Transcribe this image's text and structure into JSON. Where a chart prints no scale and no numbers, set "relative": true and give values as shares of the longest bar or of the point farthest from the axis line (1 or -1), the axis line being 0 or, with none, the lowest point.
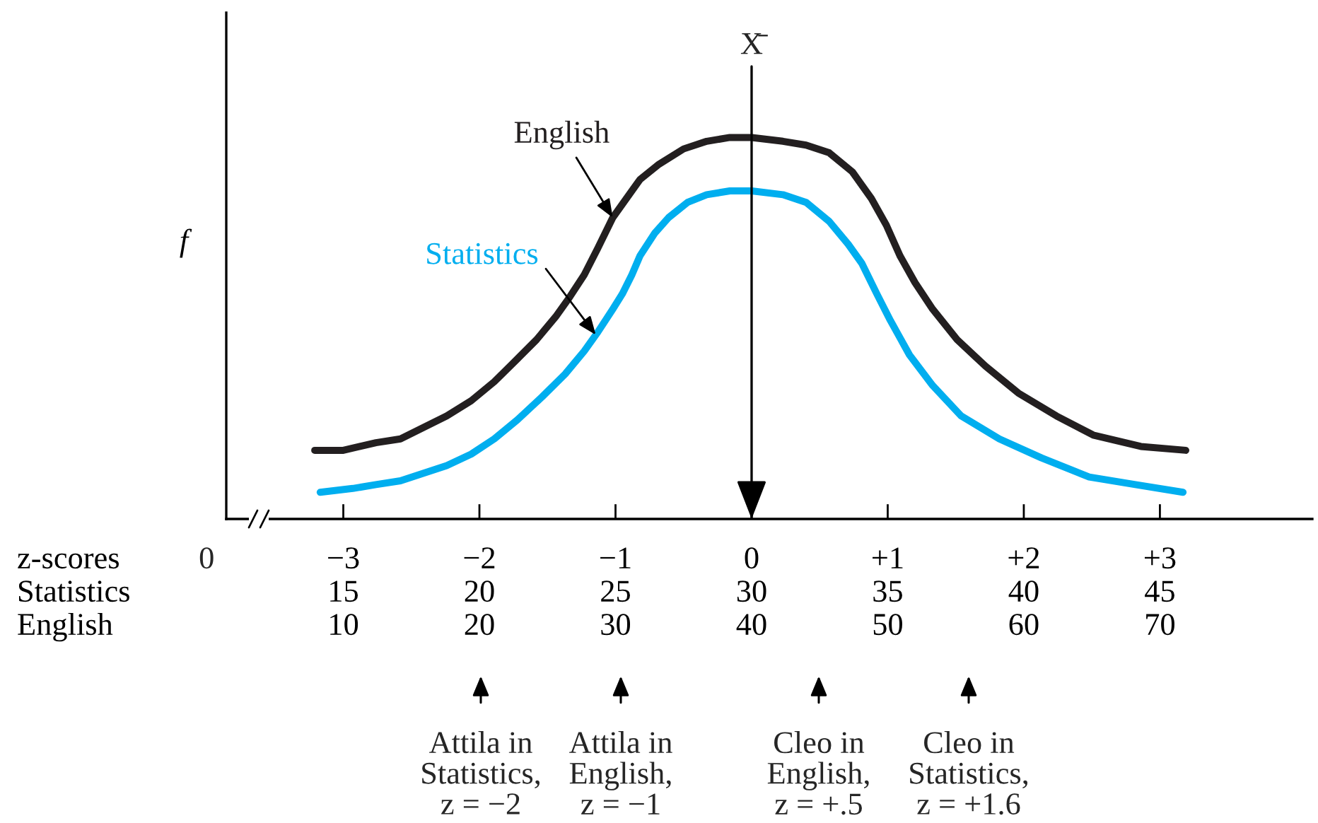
{
  "chart_data": {
    "type": "line",
    "relative": true,
    "xlabel": "z-scores",
    "x2label": "Statistics",
    "ylabel": "f",
    "xlim": [
      -3.86,
      4.12
    ],
    "xticks": [
      {
        "value": -3,
        "label": "−3"
      },
      {
        "value": -2,
        "label": "−2"
      },
      {
        "value": -1,
        "label": "−1"
      },
      0,
      {
        "value": 1,
        "label": "+1"
      },
      {
        "value": 2,
        "label": "+2"
      },
      {
        "value": 3,
        "label": "+3"
      }
    ],
    "x2lim": [
      10.7,
      50.6
    ],
    "x2ticks": [
      15,
      20,
      25,
      30,
      35,
      40,
      45
    ],
    "series": [
      {
        "name": "English",
        "color": "#231f20",
        "x": [
          -3.21,
          -3.0,
          -2.76,
          -2.58,
          -2.41,
          -2.24,
          -2.06,
          -1.89,
          -1.72,
          -1.58,
          -1.44,
          -1.34,
          -1.23,
          -1.13,
          -1.02,
          -0.92,
          -0.82,
          -0.68,
          -0.5,
          -0.33,
          -0.16,
          0,
          0.23,
          0.4,
          0.57,
          0.74,
          0.88,
          0.99,
          1.09,
          1.2,
          1.33,
          1.51,
          1.72,
          1.96,
          2.24,
          2.51,
          2.86,
          3.19
        ],
        "values": [
          0.18,
          0.18,
          0.2,
          0.21,
          0.24,
          0.27,
          0.31,
          0.36,
          0.42,
          0.47,
          0.53,
          0.58,
          0.64,
          0.71,
          0.79,
          0.84,
          0.89,
          0.93,
          0.97,
          0.99,
          1.0,
          1,
          0.99,
          0.98,
          0.96,
          0.91,
          0.84,
          0.77,
          0.69,
          0.62,
          0.55,
          0.47,
          0.4,
          0.33,
          0.27,
          0.22,
          0.19,
          0.18
        ]
      },
      {
        "name": "Statistics",
        "color": "#00aeef",
        "x": [
          -3.17,
          -2.93,
          -2.76,
          -2.58,
          -2.41,
          -2.24,
          -2.06,
          -1.89,
          -1.72,
          -1.54,
          -1.37,
          -1.23,
          -1.13,
          -1.02,
          -0.95,
          -0.88,
          -0.82,
          -0.71,
          -0.61,
          -0.47,
          -0.33,
          -0.16,
          0,
          0.23,
          0.4,
          0.57,
          0.71,
          0.81,
          0.92,
          1.02,
          1.16,
          1.33,
          1.54,
          1.82,
          2.13,
          2.48,
          2.82,
          3.17
        ],
        "values": [
          0.07,
          0.08,
          0.09,
          0.1,
          0.12,
          0.14,
          0.17,
          0.21,
          0.26,
          0.32,
          0.38,
          0.44,
          0.49,
          0.55,
          0.59,
          0.64,
          0.69,
          0.75,
          0.79,
          0.83,
          0.85,
          0.86,
          0.86,
          0.85,
          0.83,
          0.78,
          0.72,
          0.67,
          0.59,
          0.52,
          0.43,
          0.35,
          0.27,
          0.21,
          0.16,
          0.11,
          0.09,
          0.07
        ]
      }
    ],
    "ref_lines": [
      {
        "axis": "x",
        "value": 0,
        "label": "X̄"
      }
    ],
    "annotations": [
      "0",
      "English",
      "10",
      "20",
      "30",
      "40",
      "50",
      "60",
      "70",
      "Attila in\nStatistics,\nz = −2",
      "Attila in\nEnglish,\nz = −1",
      "Cleo in\nEnglish,\nz = +.5",
      "Cleo in\nStatistics,\nz = +1.6"
    ]
  }
}
